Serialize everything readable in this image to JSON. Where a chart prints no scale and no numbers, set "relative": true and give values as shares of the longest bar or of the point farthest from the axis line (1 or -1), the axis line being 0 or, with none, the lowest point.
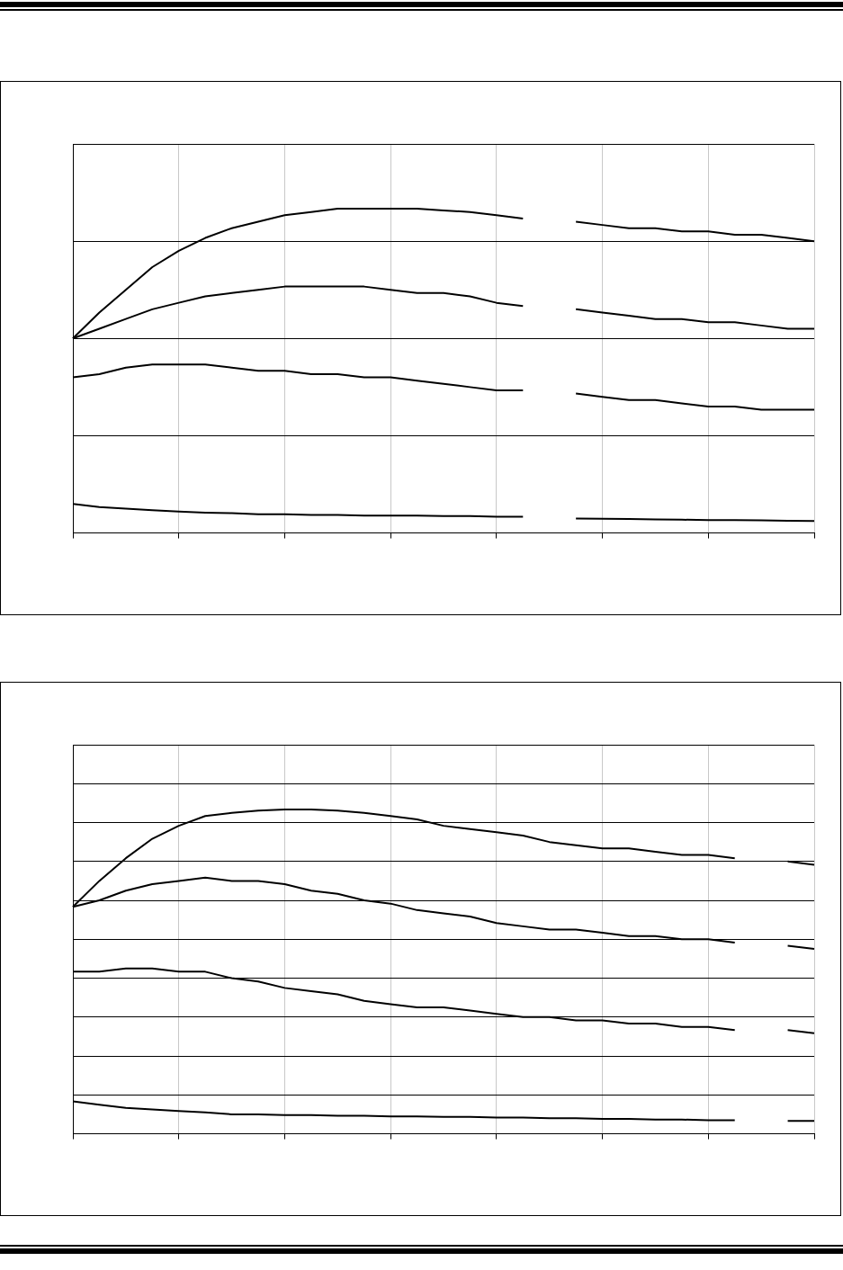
{
  "chart_data": [
    {
      "type": "line",
      "relative": true,
      "grid": true,
      "marker": "none",
      "categories": [
        null,
        null,
        null,
        null,
        null,
        null,
        null,
        null,
        null,
        null,
        null,
        null,
        null,
        null,
        null,
        null,
        null,
        null,
        null,
        null,
        null,
        null,
        null,
        null,
        null,
        null,
        null,
        null,
        null
      ],
      "series": [
        {
          "color": "#000000",
          "values": [
            0.6,
            0.68,
            0.75,
            0.82,
            0.87,
            0.91,
            0.94,
            0.96,
            0.98,
            0.99,
            1,
            1,
            1,
            1,
            0.995,
            0.99,
            0.98,
            0.97,
            null,
            0.96,
            0.95,
            0.94,
            0.94,
            0.93,
            0.93,
            0.92,
            0.92,
            0.91,
            0.9
          ]
        },
        {
          "color": "#000000",
          "values": [
            0.6,
            0.63,
            0.66,
            0.69,
            0.71,
            0.73,
            0.74,
            0.75,
            0.76,
            0.76,
            0.76,
            0.76,
            0.75,
            0.74,
            0.74,
            0.73,
            0.71,
            0.7,
            null,
            0.69,
            0.68,
            0.67,
            0.66,
            0.66,
            0.65,
            0.65,
            0.64,
            0.63,
            0.63
          ]
        },
        {
          "color": "#000000",
          "values": [
            0.48,
            0.49,
            0.51,
            0.52,
            0.52,
            0.52,
            0.51,
            0.5,
            0.5,
            0.49,
            0.49,
            0.48,
            0.48,
            0.47,
            0.46,
            0.45,
            0.44,
            0.44,
            null,
            0.43,
            0.42,
            0.41,
            0.41,
            0.4,
            0.39,
            0.39,
            0.38,
            0.38,
            0.38
          ]
        },
        {
          "color": "#000000",
          "values": [
            0.09,
            0.08,
            0.075,
            0.07,
            0.066,
            0.063,
            0.061,
            0.058,
            0.058,
            0.056,
            0.056,
            0.054,
            0.054,
            0.054,
            0.052,
            0.052,
            0.05,
            0.05,
            null,
            0.045,
            0.044,
            0.043,
            0.042,
            0.041,
            0.04,
            0.04,
            0.039,
            0.038,
            0.037
          ]
        }
      ]
    },
    {
      "type": "line",
      "relative": true,
      "grid": true,
      "marker": "none",
      "categories": [
        null,
        null,
        null,
        null,
        null,
        null,
        null,
        null,
        null,
        null,
        null,
        null,
        null,
        null,
        null,
        null,
        null,
        null,
        null,
        null,
        null,
        null,
        null,
        null,
        null,
        null,
        null,
        null,
        null
      ],
      "series": [
        {
          "color": "#000000",
          "values": [
            0.7,
            0.78,
            0.85,
            0.91,
            0.95,
            0.98,
            0.99,
            0.997,
            1,
            1,
            0.997,
            0.99,
            0.98,
            0.97,
            0.95,
            0.94,
            0.93,
            0.92,
            0.9,
            0.89,
            0.88,
            0.88,
            0.87,
            0.86,
            0.86,
            0.85,
            null,
            0.84,
            0.83
          ]
        },
        {
          "color": "#000000",
          "values": [
            0.7,
            0.72,
            0.75,
            0.77,
            0.78,
            0.79,
            0.78,
            0.78,
            0.77,
            0.75,
            0.74,
            0.72,
            0.71,
            0.69,
            0.68,
            0.67,
            0.65,
            0.64,
            0.63,
            0.63,
            0.62,
            0.61,
            0.61,
            0.6,
            0.6,
            0.59,
            null,
            0.58,
            0.57
          ]
        },
        {
          "color": "#000000",
          "values": [
            0.5,
            0.5,
            0.51,
            0.51,
            0.5,
            0.5,
            0.48,
            0.47,
            0.45,
            0.44,
            0.43,
            0.41,
            0.4,
            0.39,
            0.39,
            0.38,
            0.37,
            0.36,
            0.36,
            0.35,
            0.35,
            0.34,
            0.34,
            0.33,
            0.33,
            0.32,
            null,
            0.32,
            0.31
          ]
        },
        {
          "color": "#000000",
          "values": [
            0.1,
            0.09,
            0.08,
            0.075,
            0.07,
            0.066,
            0.06,
            0.06,
            0.058,
            0.058,
            0.056,
            0.056,
            0.054,
            0.054,
            0.052,
            0.052,
            0.05,
            0.05,
            0.048,
            0.048,
            0.046,
            0.046,
            0.044,
            0.044,
            0.042,
            0.042,
            null,
            0.04,
            0.04
          ]
        }
      ]
    }
  ]
}
